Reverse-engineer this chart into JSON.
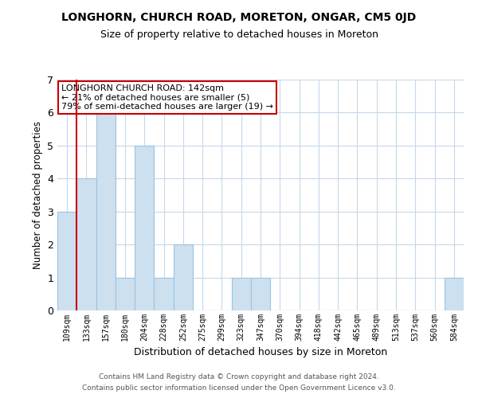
{
  "title": "LONGHORN, CHURCH ROAD, MORETON, ONGAR, CM5 0JD",
  "subtitle": "Size of property relative to detached houses in Moreton",
  "xlabel": "Distribution of detached houses by size in Moreton",
  "ylabel": "Number of detached properties",
  "bin_labels": [
    "109sqm",
    "133sqm",
    "157sqm",
    "180sqm",
    "204sqm",
    "228sqm",
    "252sqm",
    "275sqm",
    "299sqm",
    "323sqm",
    "347sqm",
    "370sqm",
    "394sqm",
    "418sqm",
    "442sqm",
    "465sqm",
    "489sqm",
    "513sqm",
    "537sqm",
    "560sqm",
    "584sqm"
  ],
  "bar_heights": [
    3,
    4,
    6,
    1,
    5,
    1,
    2,
    0,
    0,
    1,
    1,
    0,
    0,
    0,
    0,
    0,
    0,
    0,
    0,
    0,
    1
  ],
  "bar_color": "#cce0f0",
  "bar_edge_color": "#9dc3df",
  "reference_line_color": "#cc0000",
  "ylim": [
    0,
    7
  ],
  "annotation_title": "LONGHORN CHURCH ROAD: 142sqm",
  "annotation_line1": "← 21% of detached houses are smaller (5)",
  "annotation_line2": "79% of semi-detached houses are larger (19) →",
  "annotation_box_color": "#cc0000",
  "footer_line1": "Contains HM Land Registry data © Crown copyright and database right 2024.",
  "footer_line2": "Contains public sector information licensed under the Open Government Licence v3.0.",
  "bg_color": "#ffffff",
  "grid_color": "#c5d8ea"
}
